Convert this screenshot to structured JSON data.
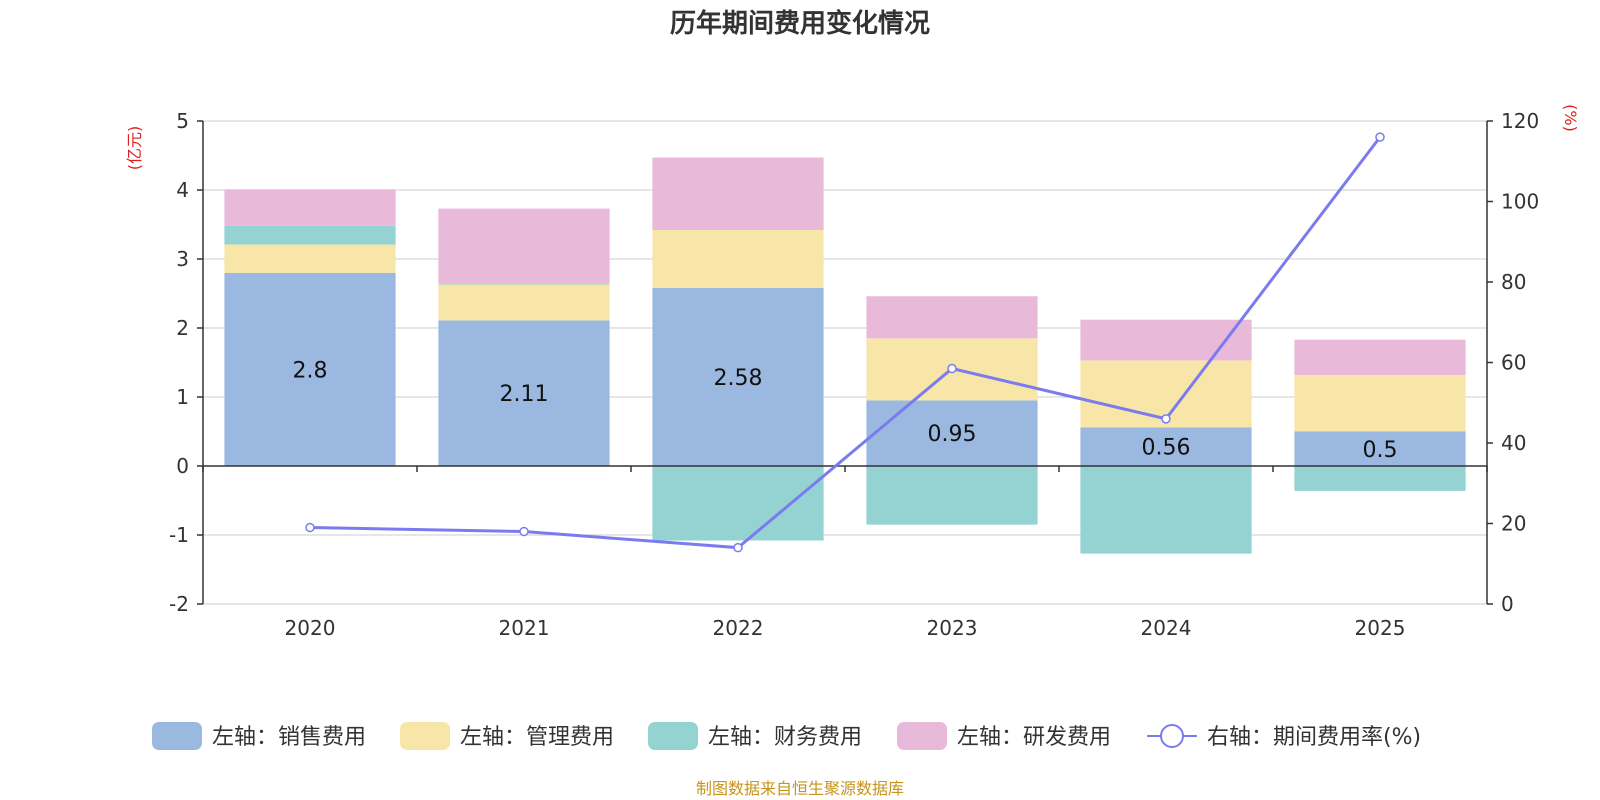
{
  "chart_data": {
    "type": "bar",
    "title": "历年期间费用变化情况",
    "categories": [
      "2020",
      "2021",
      "2022",
      "2023",
      "2024",
      "2025"
    ],
    "left_axis": {
      "unit": "(亿元)",
      "ylim": [
        -2,
        5
      ],
      "ticks": [
        -2,
        -1,
        0,
        1,
        2,
        3,
        4,
        5
      ]
    },
    "right_axis": {
      "unit": "(%)",
      "ylim": [
        0,
        120
      ],
      "ticks": [
        0,
        20,
        40,
        60,
        80,
        100,
        120
      ]
    },
    "series": [
      {
        "name": "左轴：销售费用",
        "axis": "left",
        "kind": "bar",
        "color": "#9bb8e1",
        "values": [
          2.8,
          2.11,
          2.58,
          0.95,
          0.56,
          0.5
        ],
        "labels": [
          "2.8",
          "2.11",
          "2.58",
          "0.95",
          "0.56",
          "0.5"
        ]
      },
      {
        "name": "左轴：管理费用",
        "axis": "left",
        "kind": "bar",
        "color": "#f8e6a8",
        "values": [
          0.41,
          0.52,
          0.84,
          0.9,
          0.97,
          0.82
        ]
      },
      {
        "name": "左轴：财务费用",
        "axis": "left",
        "kind": "bar",
        "color": "#95d3d3",
        "values": [
          0.27,
          0.01,
          -1.08,
          -0.85,
          -1.27,
          -0.36
        ]
      },
      {
        "name": "左轴：研发费用",
        "axis": "left",
        "kind": "bar",
        "color": "#e8b9d9",
        "values": [
          0.53,
          1.09,
          1.05,
          0.61,
          0.59,
          0.51
        ]
      },
      {
        "name": "右轴：期间费用率(%)",
        "axis": "right",
        "kind": "line",
        "color": "#7b7bef",
        "values": [
          19,
          18,
          14,
          58.5,
          46,
          116
        ]
      }
    ]
  },
  "footer": {
    "source": "制图数据来自恒生聚源数据库"
  }
}
